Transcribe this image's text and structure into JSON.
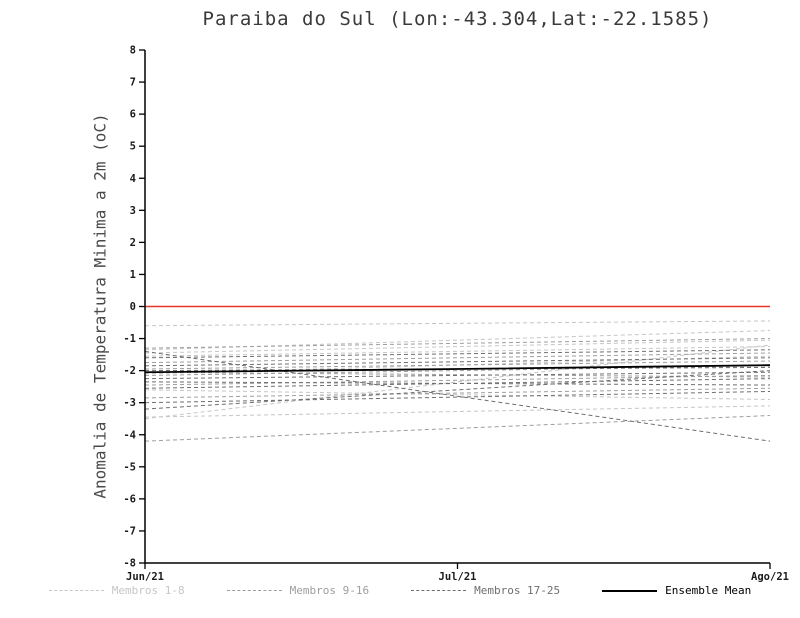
{
  "chart_data": {
    "type": "line",
    "title": "Paraiba do Sul (Lon:-43.304,Lat:-22.1585)",
    "ylabel": "Anomalia de Temperatura Minima a 2m (oC)",
    "ylim": [
      -8,
      8
    ],
    "ytick_step": 1,
    "x_tick_labels": [
      "Jun/21",
      "Jul/21",
      "Ago/21"
    ],
    "x_range": [
      0,
      2
    ],
    "grid": false,
    "zero_line": {
      "y": 0,
      "color": "#e8372c"
    },
    "series_groups": [
      {
        "name": "Membros 1-8",
        "color": "#c6c6c6",
        "style": "dashed",
        "members": [
          [
            -0.6,
            -0.45
          ],
          [
            -1.35,
            -0.75
          ],
          [
            -1.45,
            -1.05
          ],
          [
            -1.55,
            -1.25
          ],
          [
            -3.5,
            -1.2
          ],
          [
            -2.1,
            -1.55
          ],
          [
            -2.6,
            -2.9
          ],
          [
            -3.45,
            -3.1
          ]
        ]
      },
      {
        "name": "Membros 9-16",
        "color": "#9e9e9e",
        "style": "dashed",
        "members": [
          [
            -1.3,
            -1.0
          ],
          [
            -1.75,
            -1.45
          ],
          [
            -1.95,
            -1.7
          ],
          [
            -2.05,
            -2.2
          ],
          [
            -2.15,
            -1.85
          ],
          [
            -2.45,
            -2.15
          ],
          [
            -2.85,
            -2.55
          ],
          [
            -4.2,
            -3.4
          ]
        ]
      },
      {
        "name": "Membros 17-25",
        "color": "#6f6f6f",
        "style": "dashed",
        "members": [
          [
            -1.4,
            -4.2
          ],
          [
            -1.6,
            -1.35
          ],
          [
            -1.85,
            -1.6
          ],
          [
            -2.0,
            -1.9
          ],
          [
            -2.25,
            -2.05
          ],
          [
            -2.35,
            -2.45
          ],
          [
            -2.55,
            -2.25
          ],
          [
            -3.0,
            -2.65
          ],
          [
            -3.2,
            -2.0
          ]
        ]
      }
    ],
    "ensemble_mean": {
      "name": "Ensemble Mean",
      "color": "#000000",
      "style": "solid",
      "values": [
        -2.05,
        -1.95,
        -1.83
      ]
    },
    "legend": {
      "position": "bottom",
      "entries": [
        "Membros 1-8",
        "Membros 9-16",
        "Membros 17-25",
        "Ensemble Mean"
      ]
    }
  }
}
